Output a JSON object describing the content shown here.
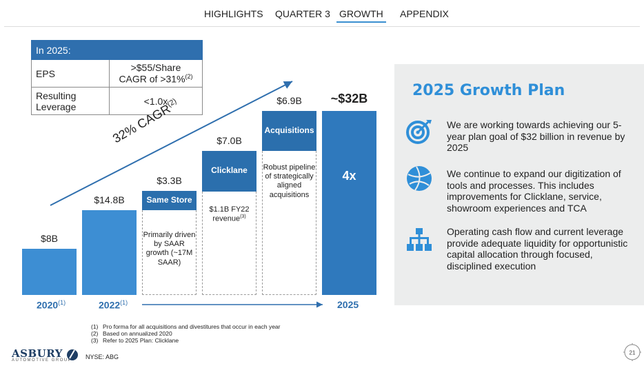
{
  "nav": {
    "items": [
      "HIGHLIGHTS",
      "QUARTER 3",
      "GROWTH",
      "APPENDIX"
    ],
    "active": "GROWTH"
  },
  "eps_table": {
    "header": "In 2025:",
    "rows": [
      {
        "label": "EPS",
        "value_line1": ">$55/Share",
        "value_line2": "CAGR of >31%",
        "value_sup": "(2)"
      },
      {
        "label_line1": "Resulting",
        "label_line2": "Leverage",
        "value": "<1.0x"
      }
    ]
  },
  "chart_data": {
    "type": "bar",
    "categories": [
      "2020",
      "2022",
      "Same Store",
      "Clicklane",
      "Acquisitions",
      "2025"
    ],
    "values": [
      8,
      14.8,
      3.3,
      7.0,
      6.9,
      32
    ],
    "value_labels": [
      "$8B",
      "$14.8B",
      "$3.3B",
      "$7.0B",
      "$6.9B",
      "~$32B"
    ],
    "cumulative_base": [
      0,
      0,
      14.8,
      18.1,
      25.1,
      0
    ],
    "ylim": [
      0,
      34
    ],
    "x_labels": {
      "2020": "2020",
      "2020_sup": "(1)",
      "2022": "2022",
      "2022_sup": "(1)",
      "2025": "2025"
    },
    "segment_labels": {
      "same_store": "Same Store",
      "clicklane": "Clicklane",
      "acquisitions": "Acquisitions",
      "multiple": "4x"
    },
    "segment_notes": {
      "same_store": "Primarily driven by SAAR growth (~17M SAAR)",
      "clicklane": "$1.1B FY22 revenue",
      "clicklane_sup": "(3)",
      "acquisitions": "Robust pipeline of strategically aligned acquisitions"
    },
    "cagr_label": "32% CAGR",
    "cagr_sup": "(2)",
    "colors": {
      "bar": "#3d8ed3",
      "dark": "#2b6fad",
      "accent": "#2f8fd8"
    }
  },
  "panel": {
    "title": "2025 Growth Plan",
    "points": [
      {
        "icon": "target-icon",
        "text": "We are working towards achieving our 5-year plan goal of $32 billion in revenue by 2025"
      },
      {
        "icon": "globe-icon",
        "text": "We continue to expand our digitization of tools and processes. This includes improvements for Clicklane, service, showroom experiences and TCA"
      },
      {
        "icon": "org-chart-icon",
        "text": "Operating cash flow and current leverage provide adequate liquidity for opportunistic capital allocation through focused, disciplined execution"
      }
    ]
  },
  "footnotes": [
    {
      "num": "(1)",
      "text": "Pro forma for all acquisitions and divestitures that occur in each year"
    },
    {
      "num": "(2)",
      "text": "Based on annualized 2020"
    },
    {
      "num": "(3)",
      "text": "Refer to 2025 Plan: Clicklane"
    }
  ],
  "footer": {
    "logo": "ASBURY",
    "logo_sub": "AUTOMOTIVE GROUP",
    "ticker": "NYSE: ABG",
    "page": "21"
  }
}
